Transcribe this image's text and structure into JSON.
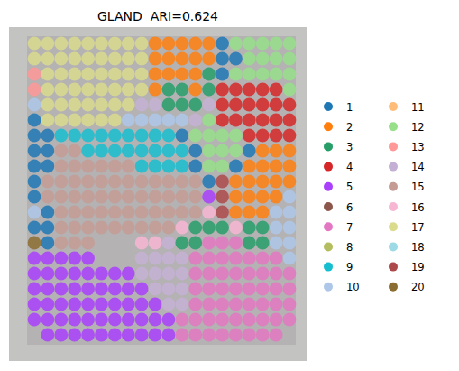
{
  "chart_data": {
    "type": "spatial",
    "title": "GLAND  ARI=0.624",
    "categories": [
      "1",
      "2",
      "3",
      "4",
      "5",
      "6",
      "7",
      "8",
      "9",
      "10",
      "11",
      "12",
      "13",
      "14",
      "15",
      "16",
      "17",
      "18",
      "19",
      "20"
    ],
    "colors": [
      "#1f77b4",
      "#ff7f0e",
      "#279e68",
      "#d62728",
      "#aa40fc",
      "#8c564b",
      "#e377c2",
      "#b5bd61",
      "#17becf",
      "#aec7e8",
      "#ffbb78",
      "#98df8a",
      "#ff9896",
      "#c5b0d5",
      "#c49c94",
      "#f7b6d2",
      "#dbdb8d",
      "#9edae5",
      "#ad494a",
      "#8c6d31"
    ],
    "legend": "right",
    "tick_labels": false,
    "cells": [
      [
        17,
        17,
        17,
        17,
        17,
        17,
        17,
        17,
        17,
        2,
        2,
        2,
        2,
        2,
        1,
        12,
        12,
        12,
        12,
        12
      ],
      [
        17,
        17,
        17,
        17,
        17,
        17,
        17,
        17,
        17,
        2,
        2,
        2,
        2,
        2,
        1,
        1,
        12,
        12,
        12,
        12
      ],
      [
        13,
        17,
        17,
        17,
        17,
        17,
        17,
        17,
        17,
        2,
        2,
        2,
        2,
        3,
        1,
        12,
        12,
        12,
        12,
        12
      ],
      [
        13,
        17,
        17,
        17,
        17,
        17,
        17,
        17,
        17,
        2,
        3,
        3,
        2,
        3,
        4,
        4,
        4,
        4,
        4,
        12
      ],
      [
        10,
        17,
        17,
        17,
        17,
        17,
        17,
        17,
        14,
        14,
        3,
        3,
        3,
        14,
        4,
        4,
        4,
        4,
        4,
        4
      ],
      [
        1,
        17,
        17,
        17,
        17,
        17,
        17,
        10,
        10,
        10,
        10,
        10,
        14,
        12,
        4,
        4,
        4,
        4,
        4,
        4
      ],
      [
        1,
        1,
        9,
        9,
        9,
        9,
        9,
        9,
        9,
        9,
        9,
        1,
        12,
        12,
        12,
        12,
        4,
        4,
        4,
        4
      ],
      [
        1,
        1,
        15,
        15,
        9,
        9,
        9,
        9,
        9,
        9,
        9,
        9,
        1,
        12,
        12,
        12,
        1,
        2,
        2,
        2
      ],
      [
        1,
        1,
        15,
        15,
        15,
        15,
        15,
        15,
        9,
        9,
        9,
        9,
        1,
        12,
        12,
        1,
        2,
        2,
        2,
        2
      ],
      [
        1,
        15,
        15,
        15,
        15,
        15,
        15,
        15,
        15,
        15,
        15,
        15,
        15,
        1,
        19,
        2,
        2,
        2,
        2,
        2
      ],
      [
        1,
        15,
        15,
        15,
        15,
        15,
        15,
        15,
        15,
        15,
        15,
        15,
        15,
        5,
        19,
        2,
        2,
        2,
        2,
        10
      ],
      [
        10,
        1,
        15,
        15,
        15,
        15,
        15,
        15,
        15,
        15,
        15,
        15,
        15,
        16,
        19,
        2,
        2,
        2,
        10,
        10
      ],
      [
        1,
        1,
        15,
        15,
        15,
        15,
        15,
        15,
        15,
        15,
        15,
        16,
        3,
        3,
        3,
        16,
        3,
        3,
        10,
        10
      ],
      [
        20,
        1,
        15,
        15,
        15,
        null,
        null,
        null,
        16,
        16,
        14,
        3,
        3,
        7,
        7,
        7,
        3,
        3,
        10,
        10
      ],
      [
        5,
        5,
        5,
        5,
        5,
        null,
        null,
        null,
        14,
        14,
        14,
        14,
        7,
        7,
        7,
        7,
        7,
        7,
        7,
        10
      ],
      [
        5,
        5,
        5,
        5,
        5,
        5,
        5,
        5,
        14,
        14,
        14,
        14,
        7,
        7,
        7,
        7,
        7,
        7,
        7,
        7
      ],
      [
        5,
        5,
        5,
        5,
        5,
        5,
        5,
        5,
        5,
        14,
        14,
        14,
        7,
        7,
        7,
        7,
        7,
        7,
        7,
        7
      ],
      [
        5,
        5,
        5,
        5,
        5,
        5,
        5,
        5,
        5,
        5,
        14,
        14,
        7,
        7,
        7,
        7,
        7,
        7,
        7,
        7
      ],
      [
        5,
        5,
        5,
        5,
        5,
        5,
        5,
        5,
        5,
        5,
        5,
        7,
        7,
        7,
        7,
        7,
        7,
        7,
        7,
        7
      ],
      [
        null,
        5,
        5,
        5,
        5,
        5,
        5,
        5,
        5,
        5,
        5,
        7,
        7,
        7,
        7,
        7,
        7,
        7,
        7,
        null
      ]
    ]
  }
}
